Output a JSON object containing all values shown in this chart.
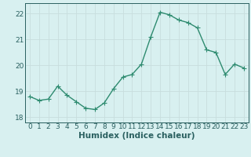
{
  "x": [
    0,
    1,
    2,
    3,
    4,
    5,
    6,
    7,
    8,
    9,
    10,
    11,
    12,
    13,
    14,
    15,
    16,
    17,
    18,
    19,
    20,
    21,
    22,
    23
  ],
  "y": [
    18.8,
    18.65,
    18.7,
    19.2,
    18.85,
    18.6,
    18.35,
    18.3,
    18.55,
    19.1,
    19.55,
    19.65,
    20.05,
    21.1,
    22.05,
    21.95,
    21.75,
    21.65,
    21.45,
    20.6,
    20.5,
    19.65,
    20.05,
    19.9
  ],
  "line_color": "#2e8b70",
  "bg_color": "#d8f0f0",
  "grid_color": "#c8dede",
  "xlabel": "Humidex (Indice chaleur)",
  "ylim": [
    17.8,
    22.4
  ],
  "xlim": [
    -0.5,
    23.5
  ],
  "yticks": [
    18,
    19,
    20,
    21,
    22
  ],
  "xticks": [
    0,
    1,
    2,
    3,
    4,
    5,
    6,
    7,
    8,
    9,
    10,
    11,
    12,
    13,
    14,
    15,
    16,
    17,
    18,
    19,
    20,
    21,
    22,
    23
  ],
  "tick_fontsize": 6.5,
  "xlabel_fontsize": 7.5,
  "line_width": 1.0,
  "marker_size": 2.2,
  "tick_color": "#2a6060",
  "spine_color": "#2a6060"
}
